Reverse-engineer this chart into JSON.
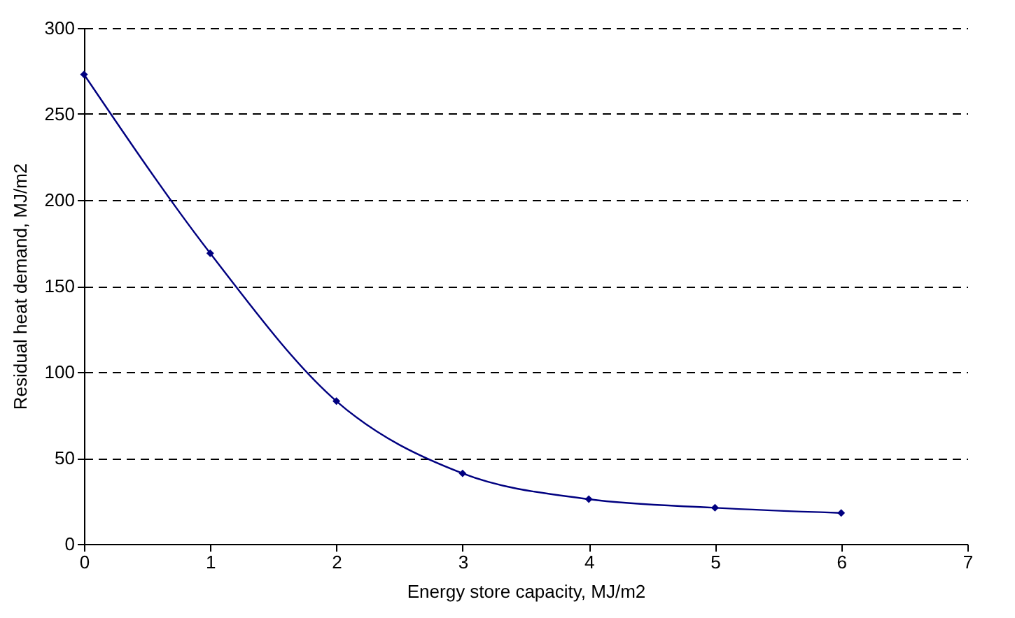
{
  "chart_data": {
    "type": "line",
    "xlabel": "Energy store capacity, MJ/m2",
    "ylabel": "Residual heat demand, MJ/m2",
    "x": [
      0,
      1,
      2,
      3,
      4,
      5,
      6
    ],
    "series": [
      {
        "color": "#000080",
        "values": [
          273,
          169,
          83,
          41,
          26,
          21,
          18
        ]
      }
    ],
    "xlim": [
      0,
      7
    ],
    "xticks": [
      0,
      1,
      2,
      3,
      4,
      5,
      6,
      7
    ],
    "ylim": [
      0,
      300
    ],
    "yticks": [
      0,
      50,
      100,
      150,
      200,
      250,
      300
    ],
    "grid": "y",
    "line_style": "solid",
    "marker": "diamond"
  }
}
